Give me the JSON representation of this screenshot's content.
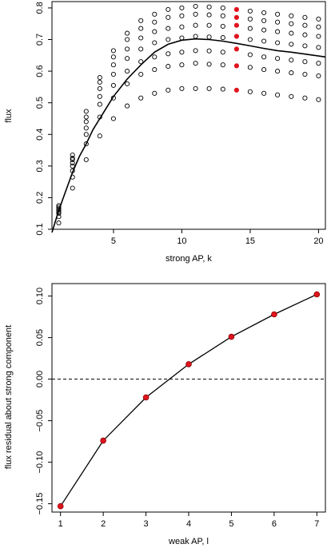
{
  "chart_data": [
    {
      "type": "scatter",
      "xlabel": "strong AP, k",
      "ylabel": "flux",
      "xlim": [
        0.5,
        20.5
      ],
      "ylim": [
        0.1,
        0.82
      ],
      "xticks": [
        5,
        10,
        15,
        20
      ],
      "yticks": [
        0.1,
        0.2,
        0.3,
        0.4,
        0.5,
        0.6,
        0.7,
        0.8
      ],
      "grid": false,
      "legend": "none",
      "point_style": "open-circle",
      "highlight_color": "#e0141e",
      "curve_color": "#000000",
      "columns": [
        {
          "x": 1,
          "y": [
            0.12,
            0.14,
            0.15,
            0.155,
            0.16,
            0.165,
            0.17,
            0.175
          ]
        },
        {
          "x": 2,
          "y": [
            0.23,
            0.265,
            0.285,
            0.3,
            0.31,
            0.32,
            0.325,
            0.335
          ]
        },
        {
          "x": 3,
          "y": [
            0.32,
            0.37,
            0.4,
            0.42,
            0.44,
            0.455,
            0.473
          ]
        },
        {
          "x": 4,
          "y": [
            0.395,
            0.455,
            0.495,
            0.52,
            0.545,
            0.565,
            0.58
          ]
        },
        {
          "x": 5,
          "y": [
            0.45,
            0.515,
            0.555,
            0.59,
            0.62,
            0.645,
            0.665
          ]
        },
        {
          "x": 6,
          "y": [
            0.49,
            0.56,
            0.6,
            0.64,
            0.67,
            0.7,
            0.72
          ]
        },
        {
          "x": 7,
          "y": [
            0.515,
            0.59,
            0.63,
            0.67,
            0.705,
            0.735,
            0.76
          ]
        },
        {
          "x": 8,
          "y": [
            0.53,
            0.605,
            0.645,
            0.69,
            0.725,
            0.755,
            0.78
          ]
        },
        {
          "x": 9,
          "y": [
            0.54,
            0.615,
            0.655,
            0.7,
            0.735,
            0.77,
            0.795
          ]
        },
        {
          "x": 10,
          "y": [
            0.545,
            0.62,
            0.66,
            0.705,
            0.74,
            0.775,
            0.8
          ]
        },
        {
          "x": 11,
          "y": [
            0.545,
            0.625,
            0.665,
            0.71,
            0.745,
            0.78,
            0.805
          ]
        },
        {
          "x": 12,
          "y": [
            0.545,
            0.622,
            0.664,
            0.708,
            0.745,
            0.778,
            0.803
          ]
        },
        {
          "x": 13,
          "y": [
            0.543,
            0.62,
            0.66,
            0.706,
            0.742,
            0.775,
            0.8
          ]
        },
        {
          "x": 14,
          "y": [
            0.54,
            0.617,
            0.67,
            0.71,
            0.745,
            0.77,
            0.795
          ],
          "highlight": true
        },
        {
          "x": 15,
          "y": [
            0.535,
            0.612,
            0.652,
            0.7,
            0.735,
            0.765,
            0.79
          ]
        },
        {
          "x": 16,
          "y": [
            0.53,
            0.605,
            0.645,
            0.695,
            0.73,
            0.76,
            0.785
          ]
        },
        {
          "x": 17,
          "y": [
            0.525,
            0.6,
            0.64,
            0.69,
            0.725,
            0.755,
            0.78
          ]
        },
        {
          "x": 18,
          "y": [
            0.52,
            0.595,
            0.635,
            0.685,
            0.72,
            0.75,
            0.775
          ]
        },
        {
          "x": 19,
          "y": [
            0.515,
            0.59,
            0.63,
            0.68,
            0.715,
            0.745,
            0.77
          ]
        },
        {
          "x": 20,
          "y": [
            0.51,
            0.585,
            0.625,
            0.675,
            0.71,
            0.74,
            0.765
          ]
        }
      ],
      "curve": {
        "x": [
          0.5,
          1,
          1.5,
          2,
          2.5,
          3,
          3.5,
          4,
          5,
          6,
          7,
          8,
          9,
          10,
          11,
          12,
          13,
          14,
          15,
          16,
          17,
          18,
          19,
          20,
          20.5
        ],
        "y": [
          0.09,
          0.16,
          0.22,
          0.28,
          0.33,
          0.37,
          0.415,
          0.45,
          0.52,
          0.575,
          0.62,
          0.66,
          0.685,
          0.698,
          0.702,
          0.7,
          0.695,
          0.688,
          0.68,
          0.672,
          0.665,
          0.66,
          0.654,
          0.648,
          0.645
        ]
      }
    },
    {
      "type": "line",
      "xlabel": "weak AP, l",
      "ylabel": "flux residual about strong component",
      "xlim": [
        0.8,
        7.2
      ],
      "ylim": [
        -0.16,
        0.115
      ],
      "xticks": [
        1,
        2,
        3,
        4,
        5,
        6,
        7
      ],
      "yticks": [
        -0.15,
        -0.1,
        -0.05,
        0.0,
        0.05,
        0.1
      ],
      "ytick_labels": [
        "−0.15",
        "−0.10",
        "−0.05",
        "0.00",
        "0.05",
        "0.10"
      ],
      "grid": false,
      "legend": "none",
      "reference_line": {
        "y": 0,
        "style": "dashed"
      },
      "marker_color": "#e0141e",
      "x": [
        1,
        2,
        3,
        4,
        5,
        6,
        7
      ],
      "y": [
        -0.153,
        -0.074,
        -0.022,
        0.018,
        0.051,
        0.078,
        0.102
      ]
    }
  ]
}
